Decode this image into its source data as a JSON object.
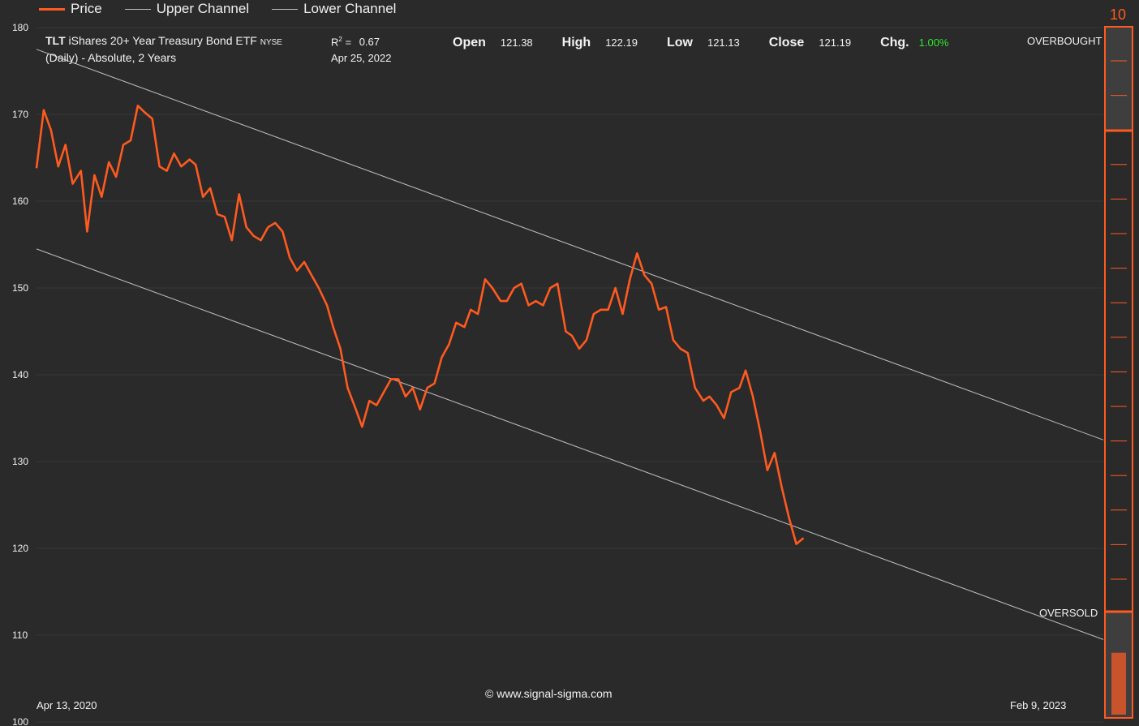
{
  "legend": [
    {
      "label": "Price",
      "color": "#ff5a1f"
    },
    {
      "label": "Upper Channel",
      "color": "#bdbdbd"
    },
    {
      "label": "Lower Channel",
      "color": "#bdbdbd"
    }
  ],
  "header": {
    "ticker": "TLT",
    "name": "iShares 20+ Year Treasury Bond ETF",
    "exchange": "NYSE",
    "subtitle": "(Daily) - Absolute, 2 Years",
    "r2_label": "R",
    "r2_sup": "2",
    "r2_eq": "=",
    "r2_value": "0.67",
    "date": "Apr 25, 2022"
  },
  "ohlc": {
    "open_label": "Open",
    "open": "121.38",
    "high_label": "High",
    "high": "122.19",
    "low_label": "Low",
    "low": "121.13",
    "close_label": "Close",
    "close": "121.19",
    "chg_label": "Chg.",
    "chg": "1.00%"
  },
  "oscillator": {
    "top_value": "10",
    "overbought_label": "OVERBOUGHT",
    "oversold_label": "OVERSOLD",
    "level": 0.09
  },
  "dates": {
    "start": "Apr 13, 2020",
    "end": "Feb 9, 2023"
  },
  "copyright": "© www.signal-sigma.com",
  "colors": {
    "background": "#2a2a2a",
    "price": "#ff5a1f",
    "channel": "#bdbdbd",
    "grid": "#383838",
    "positive": "#2ee62e"
  },
  "chart_data": {
    "type": "line",
    "title": "TLT iShares 20+ Year Treasury Bond ETF",
    "xlabel": "",
    "ylabel": "",
    "ylim": [
      100,
      180
    ],
    "y_ticks": [
      180,
      170,
      160,
      150,
      140,
      130,
      120,
      110,
      100
    ],
    "xlim": [
      "2020-04-13",
      "2023-02-09"
    ],
    "grid": true,
    "legend_position": "top-left",
    "series": [
      {
        "name": "Price",
        "x": [
          "2020-04-13",
          "2020-04-20",
          "2020-04-27",
          "2020-05-04",
          "2020-05-11",
          "2020-05-18",
          "2020-05-26",
          "2020-06-01",
          "2020-06-08",
          "2020-06-15",
          "2020-06-22",
          "2020-06-29",
          "2020-07-06",
          "2020-07-13",
          "2020-07-20",
          "2020-07-27",
          "2020-08-03",
          "2020-08-10",
          "2020-08-17",
          "2020-08-24",
          "2020-08-31",
          "2020-09-08",
          "2020-09-14",
          "2020-09-21",
          "2020-09-28",
          "2020-10-05",
          "2020-10-12",
          "2020-10-19",
          "2020-10-26",
          "2020-11-02",
          "2020-11-09",
          "2020-11-16",
          "2020-11-23",
          "2020-11-30",
          "2020-12-07",
          "2020-12-14",
          "2020-12-21",
          "2020-12-28",
          "2021-01-04",
          "2021-01-11",
          "2021-01-19",
          "2021-01-25",
          "2021-02-01",
          "2021-02-08",
          "2021-02-16",
          "2021-02-22",
          "2021-03-01",
          "2021-03-08",
          "2021-03-15",
          "2021-03-22",
          "2021-03-29",
          "2021-04-05",
          "2021-04-12",
          "2021-04-19",
          "2021-04-26",
          "2021-05-03",
          "2021-05-10",
          "2021-05-17",
          "2021-05-24",
          "2021-06-01",
          "2021-06-07",
          "2021-06-14",
          "2021-06-21",
          "2021-06-28",
          "2021-07-06",
          "2021-07-12",
          "2021-07-19",
          "2021-07-26",
          "2021-08-02",
          "2021-08-09",
          "2021-08-16",
          "2021-08-23",
          "2021-08-30",
          "2021-09-07",
          "2021-09-13",
          "2021-09-20",
          "2021-09-27",
          "2021-10-04",
          "2021-10-11",
          "2021-10-18",
          "2021-10-25",
          "2021-11-01",
          "2021-11-08",
          "2021-11-15",
          "2021-11-22",
          "2021-11-29",
          "2021-12-06",
          "2021-12-13",
          "2021-12-20",
          "2021-12-27",
          "2022-01-03",
          "2022-01-10",
          "2022-01-18",
          "2022-01-24",
          "2022-01-31",
          "2022-02-07",
          "2022-02-14",
          "2022-02-22",
          "2022-02-28",
          "2022-03-07",
          "2022-03-14",
          "2022-03-21",
          "2022-03-28",
          "2022-04-04",
          "2022-04-11",
          "2022-04-18",
          "2022-04-25"
        ],
        "values": [
          163.8,
          170.5,
          168.2,
          164.0,
          166.5,
          162.0,
          163.5,
          156.5,
          163.0,
          160.5,
          164.5,
          162.8,
          166.5,
          167.0,
          171.0,
          170.2,
          169.5,
          164.0,
          163.5,
          165.5,
          164.0,
          164.8,
          164.2,
          160.5,
          161.5,
          158.5,
          158.2,
          155.5,
          160.8,
          157.0,
          156.0,
          155.5,
          157.0,
          157.5,
          156.5,
          153.5,
          152.0,
          153.0,
          151.5,
          150.0,
          148.0,
          145.5,
          143.0,
          138.5,
          136.0,
          134.0,
          137.0,
          136.5,
          138.0,
          139.5,
          139.5,
          137.5,
          138.5,
          136.0,
          138.5,
          139.0,
          142.0,
          143.5,
          146.0,
          145.5,
          147.5,
          147.0,
          151.0,
          150.0,
          148.5,
          148.5,
          150.0,
          150.5,
          148.0,
          148.5,
          148.0,
          150.0,
          150.5,
          145.0,
          144.5,
          143.0,
          144.0,
          147.0,
          147.5,
          147.5,
          150.0,
          147.0,
          151.0,
          154.0,
          151.5,
          150.5,
          147.5,
          147.8,
          144.0,
          143.0,
          142.5,
          138.5,
          137.0,
          137.5,
          136.5,
          135.0,
          138.0,
          138.5,
          140.5,
          137.5,
          133.5,
          129.0,
          131.0,
          127.0,
          123.5,
          120.5,
          121.2
        ]
      },
      {
        "name": "Upper Channel",
        "x": [
          "2020-04-13",
          "2023-02-09"
        ],
        "values": [
          177.5,
          132.5
        ]
      },
      {
        "name": "Lower Channel",
        "x": [
          "2020-04-13",
          "2023-02-09"
        ],
        "values": [
          154.5,
          109.5
        ]
      }
    ]
  }
}
